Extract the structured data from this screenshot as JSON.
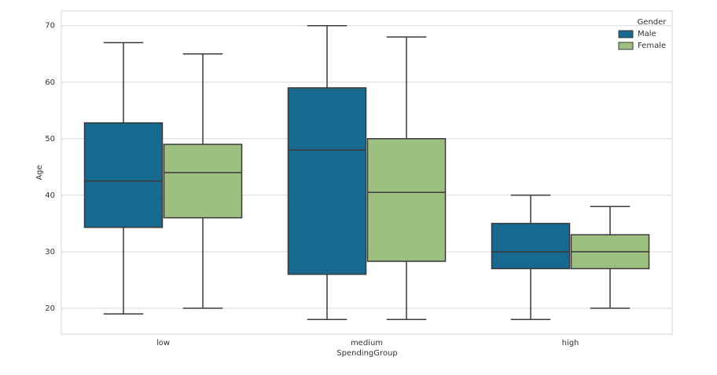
{
  "chart_data": {
    "type": "box",
    "xlabel": "SpendingGroup",
    "ylabel": "Age",
    "categories": [
      "low",
      "medium",
      "high"
    ],
    "ylim": [
      15.4,
      72.6
    ],
    "yticks": [
      20,
      30,
      40,
      50,
      60,
      70
    ],
    "grid": true,
    "legend_title": "Gender",
    "legend_position": "upper right",
    "series": [
      {
        "name": "Male",
        "color": "#17698f",
        "values": [
          {
            "min": 19,
            "q1": 34.3,
            "median": 42.5,
            "q3": 52.8,
            "max": 67
          },
          {
            "min": 18,
            "q1": 26,
            "median": 48,
            "q3": 59,
            "max": 70
          },
          {
            "min": 18,
            "q1": 27,
            "median": 30,
            "q3": 35,
            "max": 40
          }
        ]
      },
      {
        "name": "Female",
        "color": "#9dbf7f",
        "values": [
          {
            "min": 20,
            "q1": 36,
            "median": 44,
            "q3": 49,
            "max": 65
          },
          {
            "min": 18,
            "q1": 28.3,
            "median": 40.5,
            "q3": 50,
            "max": 68
          },
          {
            "min": 20,
            "q1": 27,
            "median": 30,
            "q3": 33,
            "max": 38
          }
        ]
      }
    ]
  }
}
